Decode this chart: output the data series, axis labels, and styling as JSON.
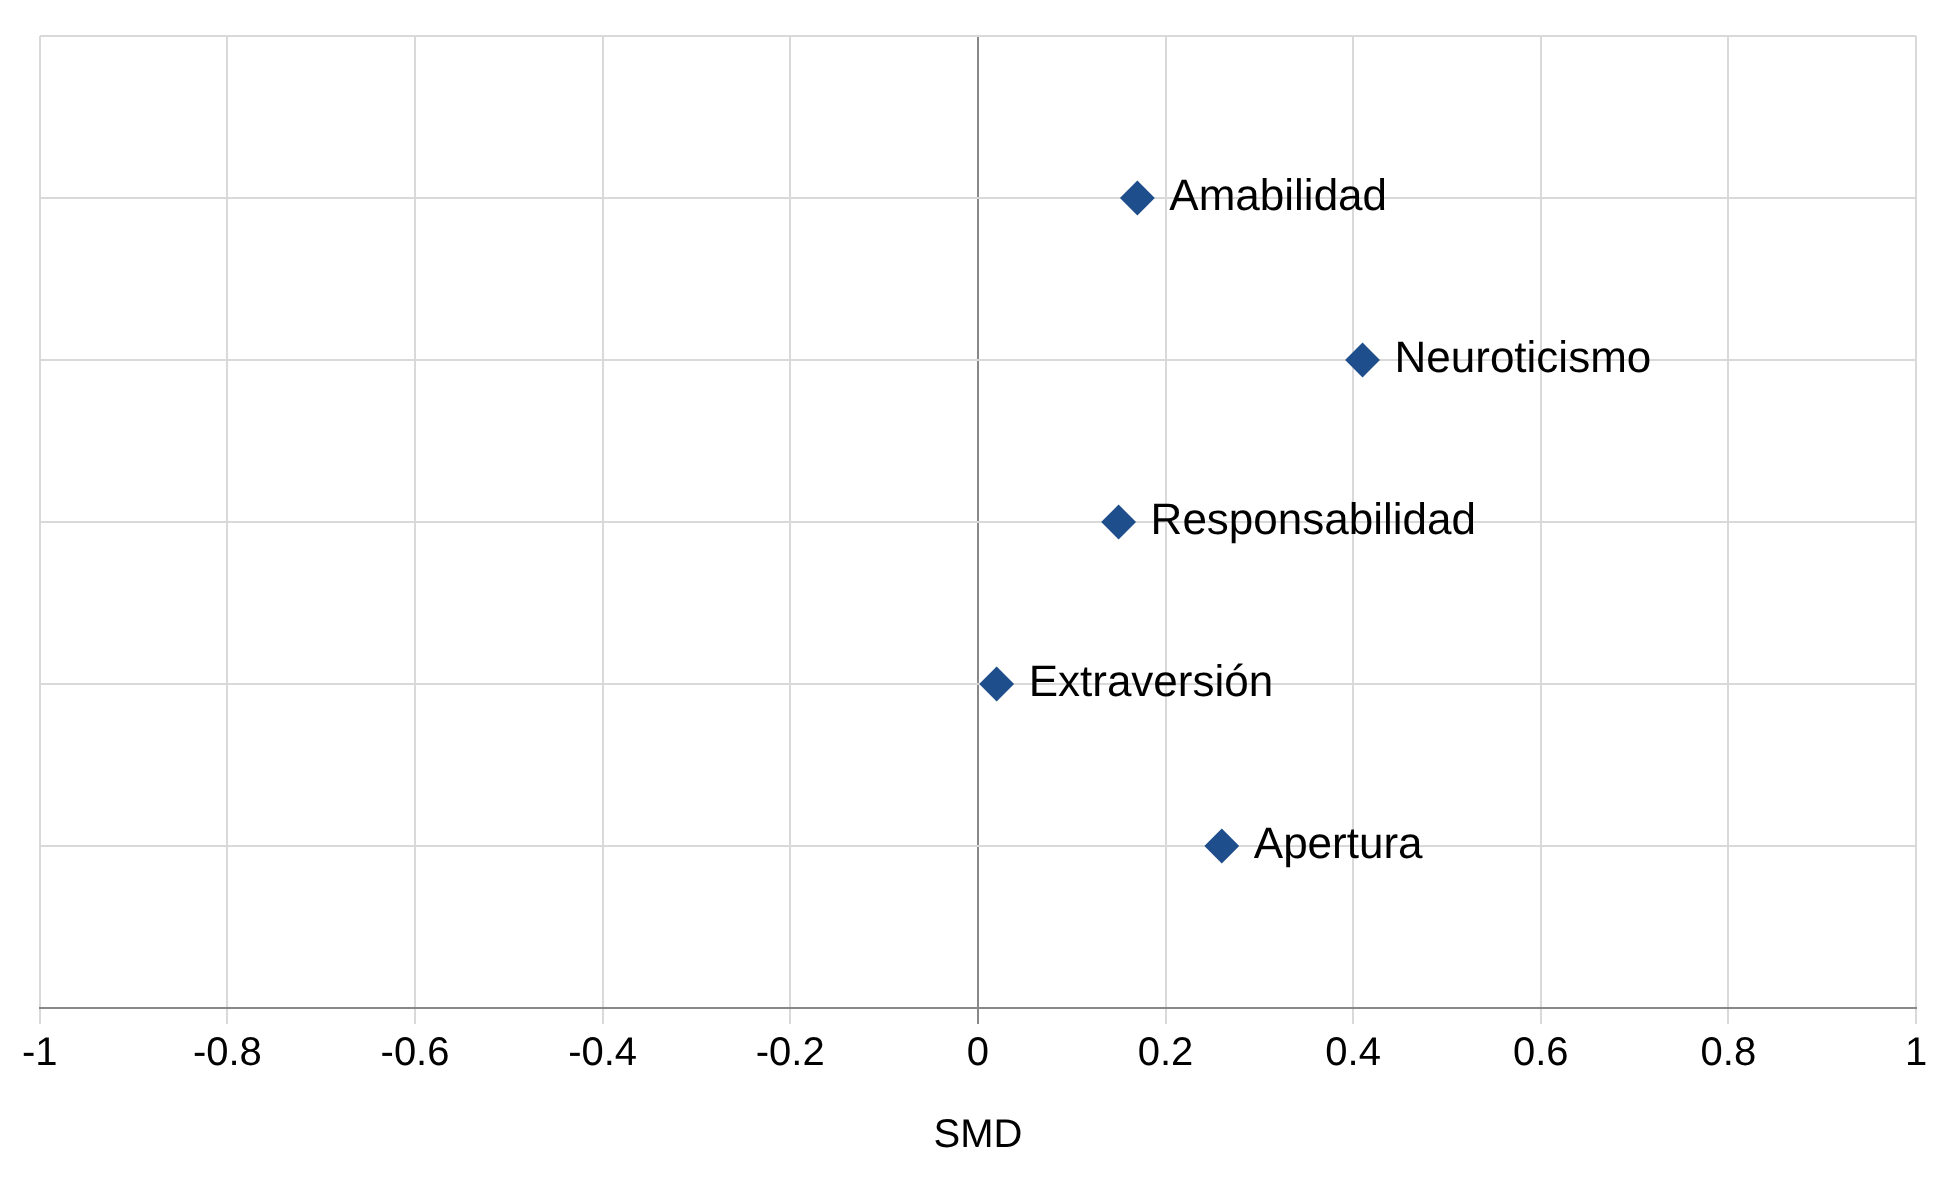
{
  "chart_data": {
    "type": "scatter",
    "orientation": "horizontal",
    "xlabel": "SMD",
    "categories": [
      "Amabilidad",
      "Neuroticismo",
      "Responsabilidad",
      "Extraversión",
      "Apertura"
    ],
    "values": [
      0.17,
      0.41,
      0.15,
      0.02,
      0.26
    ],
    "color": "#1f4e8c",
    "marker": "diamond",
    "grid": true,
    "legend": false,
    "tick_labels": "x",
    "xlim": [
      -1,
      1
    ],
    "xticks": [
      -1,
      -0.8,
      -0.6,
      -0.4,
      -0.2,
      0,
      0.2,
      0.4,
      0.6,
      0.8,
      1
    ]
  }
}
